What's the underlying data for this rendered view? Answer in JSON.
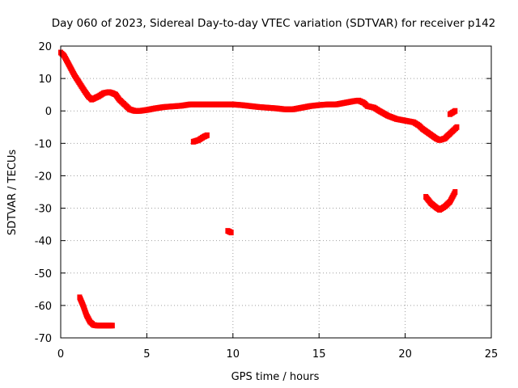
{
  "chart_data": {
    "type": "scatter",
    "title": "Day 060 of 2023, Sidereal Day-to-day VTEC variation (SDTVAR) for receiver p142",
    "xlabel": "GPS time / hours",
    "ylabel": "SDTVAR / TECUs",
    "xlim": [
      0,
      25
    ],
    "ylim": [
      -70,
      20
    ],
    "xticks": [
      0,
      5,
      10,
      15,
      20,
      25
    ],
    "yticks": [
      20,
      10,
      0,
      -10,
      -20,
      -30,
      -40,
      -50,
      -60,
      -70
    ],
    "grid": true,
    "marker_color": "#ff0000",
    "series": [
      {
        "name": "main",
        "points": [
          [
            0.0,
            18
          ],
          [
            0.2,
            17
          ],
          [
            0.5,
            14
          ],
          [
            0.8,
            11
          ],
          [
            1.1,
            8.5
          ],
          [
            1.4,
            6
          ],
          [
            1.6,
            4.5
          ],
          [
            1.8,
            3.5
          ],
          [
            2.0,
            4
          ],
          [
            2.2,
            4.5
          ],
          [
            2.5,
            5.5
          ],
          [
            2.8,
            5.8
          ],
          [
            3.0,
            5.5
          ],
          [
            3.2,
            5
          ],
          [
            3.4,
            3.5
          ],
          [
            3.6,
            2.5
          ],
          [
            3.8,
            1.5
          ],
          [
            4.0,
            0.5
          ],
          [
            4.3,
            0
          ],
          [
            4.6,
            0
          ],
          [
            5.0,
            0.3
          ],
          [
            5.5,
            0.8
          ],
          [
            6.0,
            1.2
          ],
          [
            6.5,
            1.4
          ],
          [
            7.0,
            1.6
          ],
          [
            7.5,
            2
          ],
          [
            8.0,
            2
          ],
          [
            8.5,
            2
          ],
          [
            9.0,
            2
          ],
          [
            9.5,
            2
          ],
          [
            10.0,
            2
          ],
          [
            10.5,
            1.8
          ],
          [
            11.0,
            1.5
          ],
          [
            11.5,
            1.2
          ],
          [
            12.0,
            1
          ],
          [
            12.5,
            0.8
          ],
          [
            13.0,
            0.5
          ],
          [
            13.5,
            0.5
          ],
          [
            14.0,
            1
          ],
          [
            14.5,
            1.5
          ],
          [
            15.0,
            1.8
          ],
          [
            15.5,
            2
          ],
          [
            16.0,
            2
          ],
          [
            16.5,
            2.5
          ],
          [
            17.0,
            3
          ],
          [
            17.3,
            3.2
          ],
          [
            17.6,
            2.5
          ],
          [
            17.8,
            1.5
          ],
          [
            18.2,
            1
          ],
          [
            18.5,
            0
          ],
          [
            19.0,
            -1.5
          ],
          [
            19.5,
            -2.5
          ],
          [
            20.0,
            -3
          ],
          [
            20.5,
            -3.5
          ],
          [
            20.8,
            -4.5
          ],
          [
            21.0,
            -5.5
          ],
          [
            21.4,
            -7
          ],
          [
            21.8,
            -8.5
          ],
          [
            22.0,
            -9
          ],
          [
            22.3,
            -8.5
          ],
          [
            22.6,
            -7
          ],
          [
            23.0,
            -5
          ]
        ]
      },
      {
        "name": "late-segment",
        "points": [
          [
            22.6,
            -1
          ],
          [
            22.9,
            0
          ]
        ]
      },
      {
        "name": "segment-8h",
        "points": [
          [
            7.7,
            -9.5
          ],
          [
            8.0,
            -9
          ],
          [
            8.3,
            -8
          ],
          [
            8.5,
            -7.5
          ]
        ]
      },
      {
        "name": "point-10h",
        "points": [
          [
            9.7,
            -37
          ],
          [
            9.9,
            -37.5
          ]
        ]
      },
      {
        "name": "segment-21h",
        "points": [
          [
            21.2,
            -26.5
          ],
          [
            21.5,
            -28.5
          ],
          [
            21.8,
            -29.8
          ],
          [
            22.0,
            -30.5
          ],
          [
            22.3,
            -29.5
          ],
          [
            22.6,
            -28
          ],
          [
            22.9,
            -25
          ]
        ]
      },
      {
        "name": "segment-1h",
        "points": [
          [
            1.1,
            -57.5
          ],
          [
            1.3,
            -60
          ],
          [
            1.5,
            -63
          ],
          [
            1.7,
            -65
          ],
          [
            1.9,
            -66
          ],
          [
            2.1,
            -66.2
          ],
          [
            2.4,
            -66.2
          ],
          [
            2.7,
            -66.2
          ],
          [
            3.0,
            -66.2
          ]
        ]
      }
    ]
  }
}
